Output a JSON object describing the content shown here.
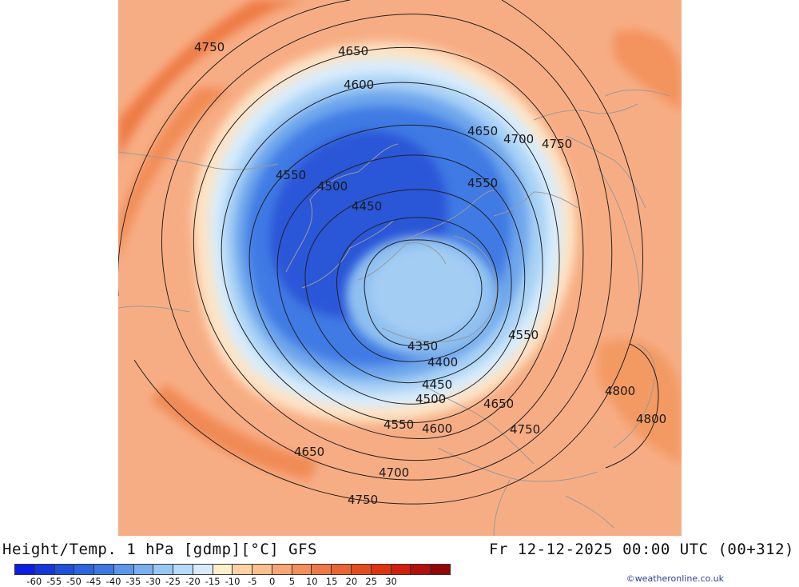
{
  "header": {
    "title_left": "Height/Temp. 1 hPa [gdmp][°C] GFS",
    "title_right": "Fr 12-12-2025 00:00 UTC (00+312)"
  },
  "credit": "©weatheronline.co.uk",
  "colorbar": {
    "colors": [
      "#0a1ee6",
      "#1437dc",
      "#1e50dc",
      "#2d64e1",
      "#3c78e6",
      "#5a96ea",
      "#78aff0",
      "#96c8f5",
      "#b4dcfa",
      "#d7ebfb",
      "#fff0c8",
      "#ffd2a5",
      "#fdbe8c",
      "#f9a673",
      "#f58f5a",
      "#f07846",
      "#eb6432",
      "#e64b1e",
      "#e1320f",
      "#d21e0a",
      "#b40f0a",
      "#960505"
    ],
    "tick_labels": [
      "-60",
      "-55",
      "-50",
      "-45",
      "-40",
      "-35",
      "-30",
      "-25",
      "-20",
      "-15",
      "-10",
      "-5",
      "0",
      "5",
      "10",
      "15",
      "20",
      "25",
      "30"
    ]
  },
  "contour_labels": [
    "4750",
    "4650",
    "4600",
    "4650",
    "4700",
    "4750",
    "4550",
    "4500",
    "4450",
    "4550",
    "4350",
    "4400",
    "4450",
    "4500",
    "4550",
    "4600",
    "4650",
    "4750",
    "4650",
    "4700",
    "4750",
    "4550",
    "4800",
    "4800"
  ],
  "map": {
    "background": "#f7ad84",
    "contour_color": "#222222",
    "coast_color": "#9a9a9a"
  }
}
